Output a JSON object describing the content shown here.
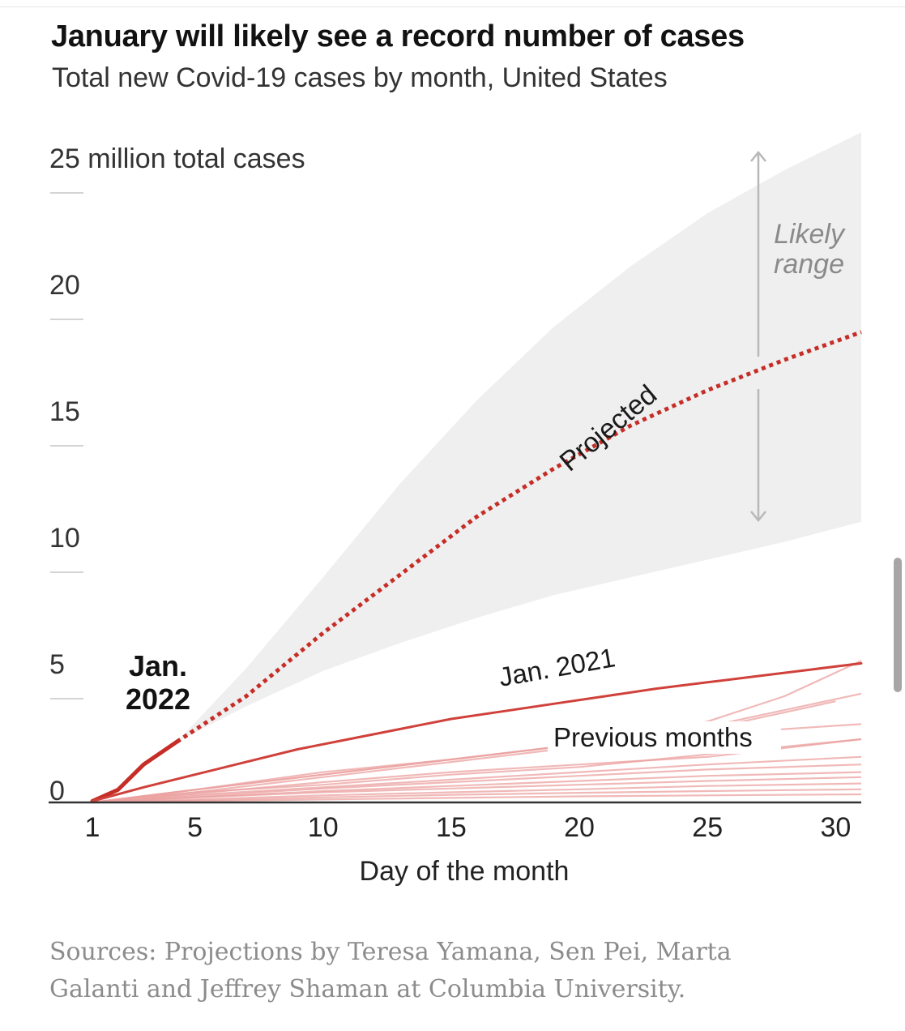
{
  "header": {
    "title": "January will likely see a record number of cases",
    "subtitle": "Total new Covid-19 cases by month, United States"
  },
  "footer": {
    "sources": "Sources: Projections by Teresa Yamana, Sen Pei, Marta Galanti and Jeffrey Shaman at Columbia University."
  },
  "chart_data": {
    "type": "line",
    "title": "January will likely see a record number of cases",
    "subtitle": "Total new Covid-19 cases by month, United States",
    "xlabel": "Day of the month",
    "ylabel": "",
    "xlim": [
      1,
      31
    ],
    "ylim": [
      0,
      25
    ],
    "x_ticks": [
      1,
      5,
      10,
      15,
      20,
      25,
      30
    ],
    "x_tick_labels": [
      "1",
      "5",
      "10",
      "15",
      "20",
      "25",
      "30"
    ],
    "y_ticks": [
      0,
      5,
      10,
      15,
      20,
      25
    ],
    "y_tick_labels": [
      "0",
      "5",
      "10",
      "15",
      "20",
      "25 million total cases"
    ],
    "grid": false,
    "colors": {
      "jan_2022": "#c62d27",
      "jan_2021": "#d0413b",
      "previous_months": "#eba2a0",
      "range_fill": "#efefef",
      "range_arrow": "#b8b8b8",
      "axis": "#333333"
    },
    "annotations": {
      "jan_2022": "Jan.\n2022",
      "jan_2021": "Jan. 2021",
      "previous_months": "Previous months",
      "projected": "Projected",
      "likely_range": "Likely\nrange"
    },
    "series": [
      {
        "name": "Jan. 2022",
        "style": "solid",
        "x": [
          1,
          2,
          3,
          4.3
        ],
        "y": [
          0.05,
          0.5,
          1.5,
          2.4
        ]
      },
      {
        "name": "Projected",
        "style": "dotted",
        "x": [
          4.3,
          7,
          10,
          13,
          16,
          19,
          22,
          25,
          28,
          31
        ],
        "y": [
          2.4,
          4.2,
          6.7,
          9.0,
          11.3,
          13.2,
          14.9,
          16.3,
          17.5,
          18.6
        ]
      },
      {
        "name": "Jan. 2021",
        "style": "solid",
        "x": [
          1,
          3,
          5,
          7,
          9,
          11,
          13,
          15,
          17,
          19,
          21,
          23,
          25,
          27,
          29,
          31
        ],
        "y": [
          0.05,
          0.6,
          1.1,
          1.6,
          2.1,
          2.5,
          2.9,
          3.3,
          3.6,
          3.9,
          4.2,
          4.5,
          4.75,
          5.0,
          5.25,
          5.5
        ]
      },
      {
        "name": "",
        "style": "faint",
        "x": [
          1,
          5,
          10,
          15,
          20,
          25,
          28,
          31
        ],
        "y": [
          0,
          0.5,
          1.1,
          1.7,
          2.3,
          3.2,
          4.2,
          5.6
        ]
      },
      {
        "name": "",
        "style": "faint",
        "x": [
          1,
          5,
          10,
          15,
          20,
          25,
          30
        ],
        "y": [
          0,
          0.4,
          1.0,
          1.6,
          2.2,
          2.9,
          4.0
        ]
      },
      {
        "name": "",
        "style": "faint",
        "x": [
          1,
          5,
          10,
          15,
          20,
          25,
          31
        ],
        "y": [
          0,
          0.5,
          1.1,
          1.7,
          2.3,
          3.0,
          4.3
        ]
      },
      {
        "name": "",
        "style": "faint",
        "x": [
          1,
          5,
          10,
          15,
          20,
          25,
          31
        ],
        "y": [
          0,
          0.5,
          1.2,
          1.7,
          2.3,
          2.7,
          3.1
        ]
      },
      {
        "name": "",
        "style": "faint",
        "x": [
          1,
          5,
          10,
          15,
          20,
          25,
          31
        ],
        "y": [
          0,
          0.35,
          0.8,
          1.2,
          1.5,
          1.8,
          2.5
        ]
      },
      {
        "name": "",
        "style": "faint",
        "x": [
          1,
          5,
          10,
          15,
          20,
          25,
          31
        ],
        "y": [
          0,
          0.4,
          0.7,
          1.1,
          1.4,
          1.9,
          2.5
        ]
      },
      {
        "name": "",
        "style": "faint",
        "x": [
          1,
          5,
          10,
          15,
          20,
          25,
          31
        ],
        "y": [
          0,
          0.3,
          0.6,
          0.9,
          1.2,
          1.5,
          1.8
        ]
      },
      {
        "name": "",
        "style": "faint",
        "x": [
          1,
          5,
          10,
          15,
          20,
          25,
          31
        ],
        "y": [
          0,
          0.25,
          0.55,
          0.8,
          1.05,
          1.3,
          1.5
        ]
      },
      {
        "name": "",
        "style": "faint",
        "x": [
          1,
          5,
          10,
          15,
          20,
          25,
          31
        ],
        "y": [
          0,
          0.2,
          0.45,
          0.65,
          0.85,
          1.05,
          1.2
        ]
      },
      {
        "name": "",
        "style": "faint",
        "x": [
          1,
          5,
          10,
          15,
          20,
          25,
          31
        ],
        "y": [
          0,
          0.2,
          0.4,
          0.55,
          0.7,
          0.85,
          1.0
        ]
      },
      {
        "name": "",
        "style": "faint",
        "x": [
          1,
          5,
          10,
          15,
          20,
          25,
          31
        ],
        "y": [
          0,
          0.12,
          0.28,
          0.4,
          0.52,
          0.65,
          0.75
        ]
      },
      {
        "name": "",
        "style": "faint",
        "x": [
          1,
          5,
          10,
          15,
          20,
          25,
          31
        ],
        "y": [
          0,
          0.08,
          0.2,
          0.3,
          0.38,
          0.45,
          0.52
        ]
      },
      {
        "name": "",
        "style": "faint",
        "x": [
          1,
          5,
          10,
          15,
          20,
          25,
          31
        ],
        "y": [
          0,
          0.05,
          0.12,
          0.18,
          0.24,
          0.28,
          0.32
        ]
      }
    ],
    "likely_range": {
      "x": [
        4.3,
        7,
        10,
        13,
        16,
        19,
        22,
        25,
        28,
        31
      ],
      "upper": [
        2.4,
        5.3,
        8.9,
        12.6,
        15.9,
        18.8,
        21.2,
        23.3,
        25.0,
        26.5
      ],
      "lower": [
        2.4,
        3.8,
        5.2,
        6.3,
        7.3,
        8.2,
        8.9,
        9.6,
        10.3,
        11.1
      ]
    }
  }
}
